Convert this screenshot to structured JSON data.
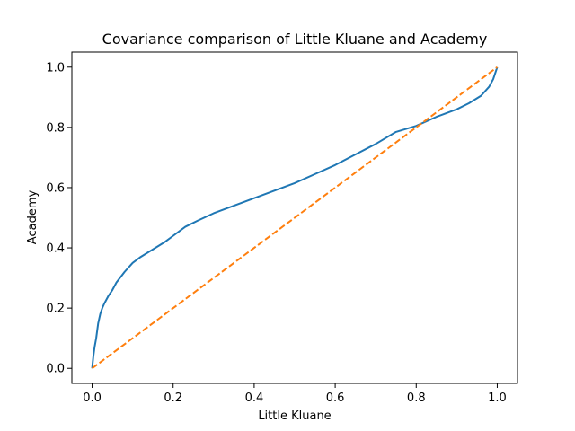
{
  "chart_data": {
    "type": "line",
    "title": "Covariance comparison of Little Kluane and Academy",
    "xlabel": "Little Kluane",
    "ylabel": "Academy",
    "xlim": [
      -0.05,
      1.05
    ],
    "ylim": [
      -0.05,
      1.05
    ],
    "xticks": [
      0.0,
      0.2,
      0.4,
      0.6,
      0.8,
      1.0
    ],
    "yticks": [
      0.0,
      0.2,
      0.4,
      0.6,
      0.8,
      1.0
    ],
    "xtick_labels": [
      "0.0",
      "0.2",
      "0.4",
      "0.6",
      "0.8",
      "1.0"
    ],
    "ytick_labels": [
      "0.0",
      "0.2",
      "0.4",
      "0.6",
      "0.8",
      "1.0"
    ],
    "grid": false,
    "legend": false,
    "series": [
      {
        "color": "#1f77b4",
        "style": "solid",
        "x": [
          0.0,
          0.003,
          0.006,
          0.01,
          0.015,
          0.02,
          0.025,
          0.03,
          0.04,
          0.05,
          0.06,
          0.08,
          0.1,
          0.12,
          0.15,
          0.18,
          0.2,
          0.23,
          0.26,
          0.3,
          0.35,
          0.4,
          0.45,
          0.5,
          0.55,
          0.6,
          0.65,
          0.7,
          0.75,
          0.8,
          0.85,
          0.9,
          0.93,
          0.96,
          0.98,
          0.99,
          1.0
        ],
        "y": [
          0.0,
          0.04,
          0.07,
          0.1,
          0.15,
          0.18,
          0.2,
          0.215,
          0.24,
          0.26,
          0.285,
          0.32,
          0.35,
          0.37,
          0.395,
          0.42,
          0.44,
          0.47,
          0.49,
          0.515,
          0.54,
          0.565,
          0.59,
          0.615,
          0.645,
          0.675,
          0.71,
          0.745,
          0.785,
          0.805,
          0.835,
          0.86,
          0.88,
          0.905,
          0.935,
          0.96,
          1.0
        ]
      },
      {
        "color": "#ff7f0e",
        "style": "dashed",
        "x": [
          0.0,
          1.0
        ],
        "y": [
          0.0,
          1.0
        ]
      }
    ]
  }
}
